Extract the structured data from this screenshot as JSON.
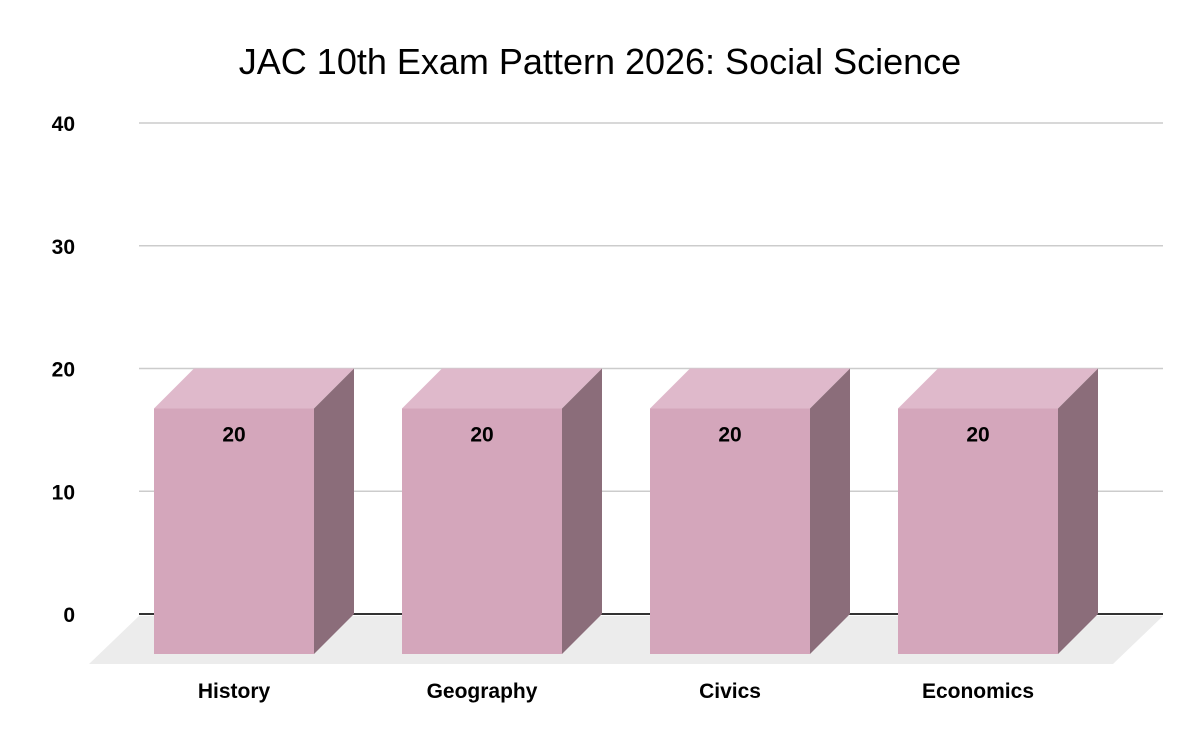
{
  "chart_data": {
    "type": "bar",
    "title": "JAC 10th Exam Pattern 2026: Social Science",
    "categories": [
      "History",
      "Geography",
      "Civics",
      "Economics"
    ],
    "values": [
      20,
      20,
      20,
      20
    ],
    "data_labels": [
      "20",
      "20",
      "20",
      "20"
    ],
    "ylim": [
      0,
      40
    ],
    "yticks": [
      0,
      10,
      20,
      30,
      40
    ],
    "ytick_labels": [
      "0",
      "10",
      "20",
      "30",
      "40"
    ],
    "xlabel": "",
    "ylabel": "",
    "grid": true,
    "style": "3d",
    "colors": {
      "front": "#d4a6bb",
      "top": "#dfb9cb",
      "side": "#8b6d7a",
      "floor": "#ececec",
      "grid": "#cccccc",
      "axis": "#333333"
    }
  }
}
